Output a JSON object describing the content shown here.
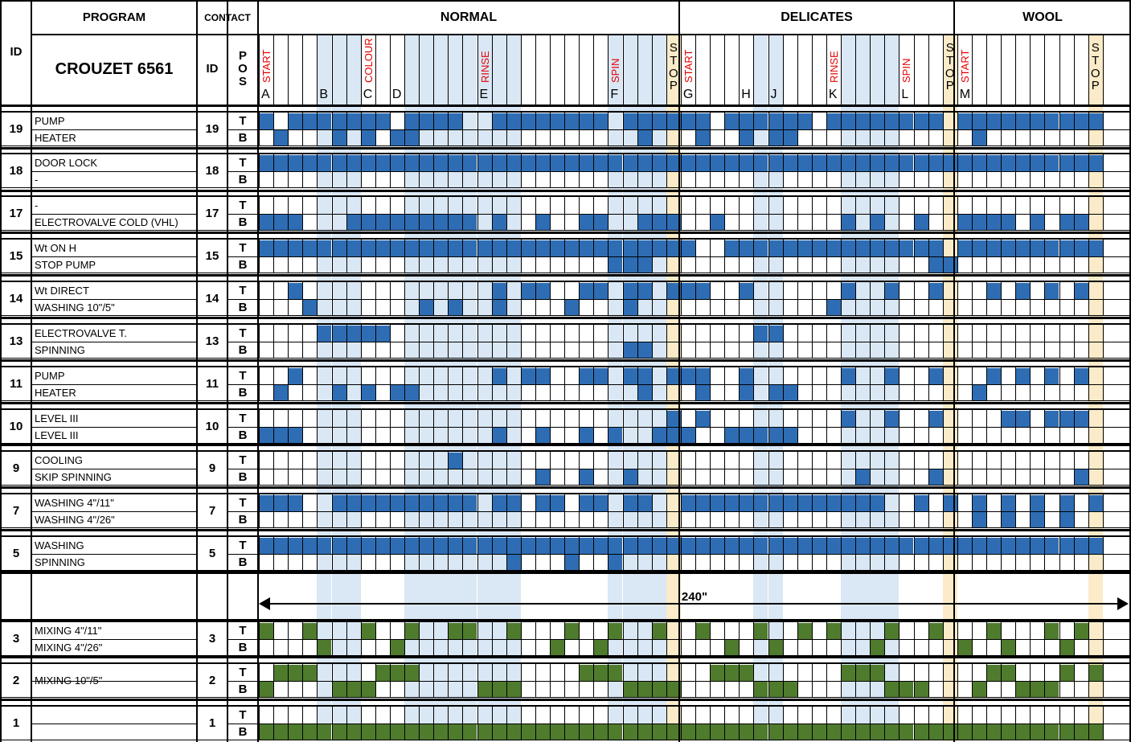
{
  "header": {
    "id_label": "ID",
    "program_label": "PROGRAM",
    "model": "CROUZET 6561",
    "contact_label": "CONTACT",
    "contact_id_label": "ID",
    "pos_label": "POS",
    "programs": [
      "NORMAL",
      "DELICATES",
      "WOOL"
    ]
  },
  "phase_letters": [
    {
      "col": 0,
      "letter": "A"
    },
    {
      "col": 4,
      "letter": "B"
    },
    {
      "col": 7,
      "letter": "C"
    },
    {
      "col": 9,
      "letter": "D"
    },
    {
      "col": 15,
      "letter": "E"
    },
    {
      "col": 24,
      "letter": "F"
    },
    {
      "col": 29,
      "letter": "G"
    },
    {
      "col": 33,
      "letter": "H"
    },
    {
      "col": 35,
      "letter": "J"
    },
    {
      "col": 39,
      "letter": "K"
    },
    {
      "col": 44,
      "letter": "L"
    },
    {
      "col": 48,
      "letter": "M"
    }
  ],
  "markers": [
    {
      "col": 0,
      "text": "START"
    },
    {
      "col": 7,
      "text": "COLOUR"
    },
    {
      "col": 15,
      "text": "RINSE"
    },
    {
      "col": 24,
      "text": "SPIN"
    },
    {
      "col": 29,
      "text": "START"
    },
    {
      "col": 39,
      "text": "RINSE"
    },
    {
      "col": 44,
      "text": "SPIN"
    },
    {
      "col": 48,
      "text": "START"
    }
  ],
  "stop_text": "STOP",
  "duration_label": "240\"",
  "colors": {
    "active_blue": "#2e6db4",
    "active_green": "#4f7b2d",
    "lane_blue": "#dae7f4",
    "lane_stop": "#fbebc8"
  },
  "contacts": [
    {
      "id": "19",
      "cam": "19",
      "top_label": "PUMP",
      "bottom_label": "HEATER",
      "color": "blue",
      "top": "1011111110111100111111110111111011111101111111101111111111",
      "bottom": "0100010101100000000000000010001001011000000000000100000000"
    },
    {
      "id": "18",
      "cam": "18",
      "top_label": "DOOR LOCK",
      "bottom_label": "-",
      "color": "blue",
      "top": "1111111111111111111111111111111111111111111111111111111111",
      "bottom": "0000000000000000000000000000000000000000000000000000000000"
    },
    {
      "id": "17",
      "cam": "17",
      "top_label": "-",
      "bottom_label": "ELECTROVALVE COLD (VHL)",
      "color": "blue",
      "top": "0000000000000000000000000000000000000000000000000000000000",
      "bottom": "1110001111111110100100110011100100000000101001001111010110"
    },
    {
      "id": "15",
      "cam": "15",
      "top_label": "Wt ON H",
      "bottom_label": "STOP PUMP",
      "color": "blue",
      "top": "1111111111111111111111111111110011111111111111101111111111",
      "bottom": "0000000000000000000000001110000000000000000000110000000000"
    },
    {
      "id": "14",
      "cam": "14",
      "top_label": "Wt DIRECT",
      "bottom_label": "WASHING 10\"/5\"",
      "color": "blue",
      "top": "0010000000000000101100110110111001000000100100100010101010",
      "bottom": "0001000000010100100001000100000000000001000000000000000000"
    },
    {
      "id": "13",
      "cam": "13",
      "top_label": "ELECTROVALVE T.",
      "bottom_label": "SPINNING",
      "color": "blue",
      "top": "0000111110000000000000000000000000110000000000000000000000",
      "bottom": "0000000000000000000000000110000000000000000000000000000000"
    },
    {
      "id": "11",
      "cam": "11",
      "top_label": "PUMP",
      "bottom_label": "HEATER",
      "color": "blue",
      "top": "0010000000000000101100110110111001000000100100100010101010",
      "bottom": "0100010101100000000000000010001001011000000000000100000000"
    },
    {
      "id": "10",
      "cam": "10",
      "top_label": "LEVEL III",
      "bottom_label": "LEVEL III",
      "color": "blue",
      "top": "0000000000000000000000000000101000000000100100100001101110",
      "bottom": "1110000000000000100100101001110011111000000000000000000000"
    },
    {
      "id": "9",
      "cam": "9",
      "top_label": "COOLING",
      "bottom_label": "SKIP SPINNING",
      "color": "blue",
      "top": "0000000000000100000000000000000000000000000000000000000000",
      "bottom": "0000000000000000000100100100000000000000010000100000000010"
    },
    {
      "id": "7",
      "cam": "7",
      "top_label": "WASHING 4\"/11\"",
      "bottom_label": "WASHING 4\"/26\"",
      "color": "blue",
      "top": "1110011111111110110110110110011111111111111001010101010101",
      "bottom": "0000000000000000000000000000000000000000000000000101010100"
    },
    {
      "id": "5",
      "cam": "5",
      "top_label": "WASHING",
      "bottom_label": "SPINNING",
      "color": "blue",
      "top": "1111111111111111111111111111111111111111111111111111111111",
      "bottom": "0000000000000000010001001000000000000000000000000000000000"
    },
    {
      "id": "",
      "cam": "",
      "top_label": "",
      "bottom_label": "",
      "color": "blank",
      "top": "",
      "bottom": ""
    },
    {
      "id": "3",
      "cam": "3",
      "top_label": "MIXING 4\"/11\"",
      "bottom_label": "MIXING 4\"/26\"",
      "color": "green",
      "top": "1001000100100110010001001001001000100101000100100010001010",
      "bottom": "0000100001000000000010010000000010010000001000001001000100"
    },
    {
      "id": "2",
      "cam": "2",
      "top_label": "MIXING 10\"/5\"",
      "bottom_label": "",
      "color": "green",
      "top": "0111000011100000000000111000000111000000111000000011000101",
      "bottom": "1000011100000001110000000111100000111000000111000100111000"
    },
    {
      "id": "1",
      "cam": "1",
      "top_label": "",
      "bottom_label": "",
      "color": "green",
      "top": "0000000000000000000000000000000000000000000000000000000000",
      "bottom": "1111111111111111111111111111111111111111111111111111111111"
    }
  ]
}
